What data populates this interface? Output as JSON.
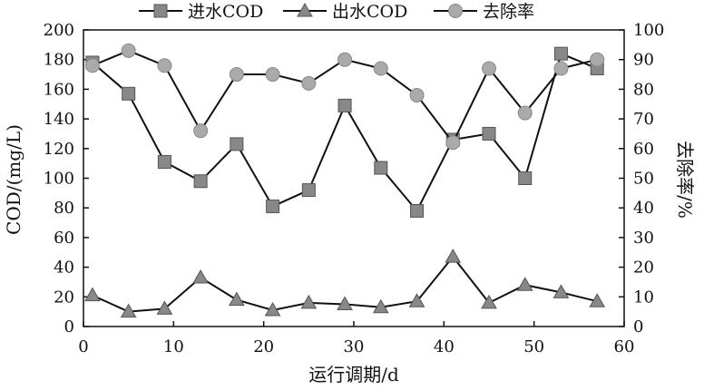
{
  "chart_data": {
    "type": "line",
    "xlabel": "运行调期/d",
    "ylabel": "COD/(mg/L)",
    "y2label": "去除率/%",
    "xlim": [
      0,
      60
    ],
    "ylim": [
      0,
      200
    ],
    "y2lim": [
      0,
      100
    ],
    "xticks": [
      0,
      10,
      20,
      30,
      40,
      50,
      60
    ],
    "yticks": [
      0,
      20,
      40,
      60,
      80,
      100,
      120,
      140,
      160,
      180,
      200
    ],
    "y2ticks": [
      0,
      10,
      20,
      30,
      40,
      50,
      60,
      70,
      80,
      90,
      100
    ],
    "grid": false,
    "legend_position": "top",
    "series": [
      {
        "name": "进水COD",
        "axis": "left",
        "marker": "square",
        "color": "#888888",
        "x": [
          1,
          5,
          9,
          13,
          17,
          21,
          25,
          29,
          33,
          37,
          41,
          45,
          49,
          53,
          57
        ],
        "values": [
          178,
          157,
          111,
          98,
          123,
          81,
          92,
          149,
          107,
          78,
          126,
          130,
          100,
          184,
          174
        ]
      },
      {
        "name": "出水COD",
        "axis": "left",
        "marker": "triangle",
        "color": "#888888",
        "x": [
          1,
          5,
          9,
          13,
          17,
          21,
          25,
          29,
          33,
          37,
          41,
          45,
          49,
          53,
          57
        ],
        "values": [
          21,
          10,
          12,
          33,
          18,
          11,
          16,
          15,
          13,
          17,
          47,
          16,
          28,
          23,
          17
        ]
      },
      {
        "name": "去除率",
        "axis": "right",
        "marker": "circle",
        "color": "#aaaaaa",
        "x": [
          1,
          5,
          9,
          13,
          17,
          21,
          25,
          29,
          33,
          37,
          41,
          45,
          49,
          53,
          57
        ],
        "values": [
          88,
          93,
          88,
          66,
          85,
          85,
          82,
          90,
          87,
          78,
          62,
          87,
          72,
          87,
          90
        ]
      }
    ]
  }
}
